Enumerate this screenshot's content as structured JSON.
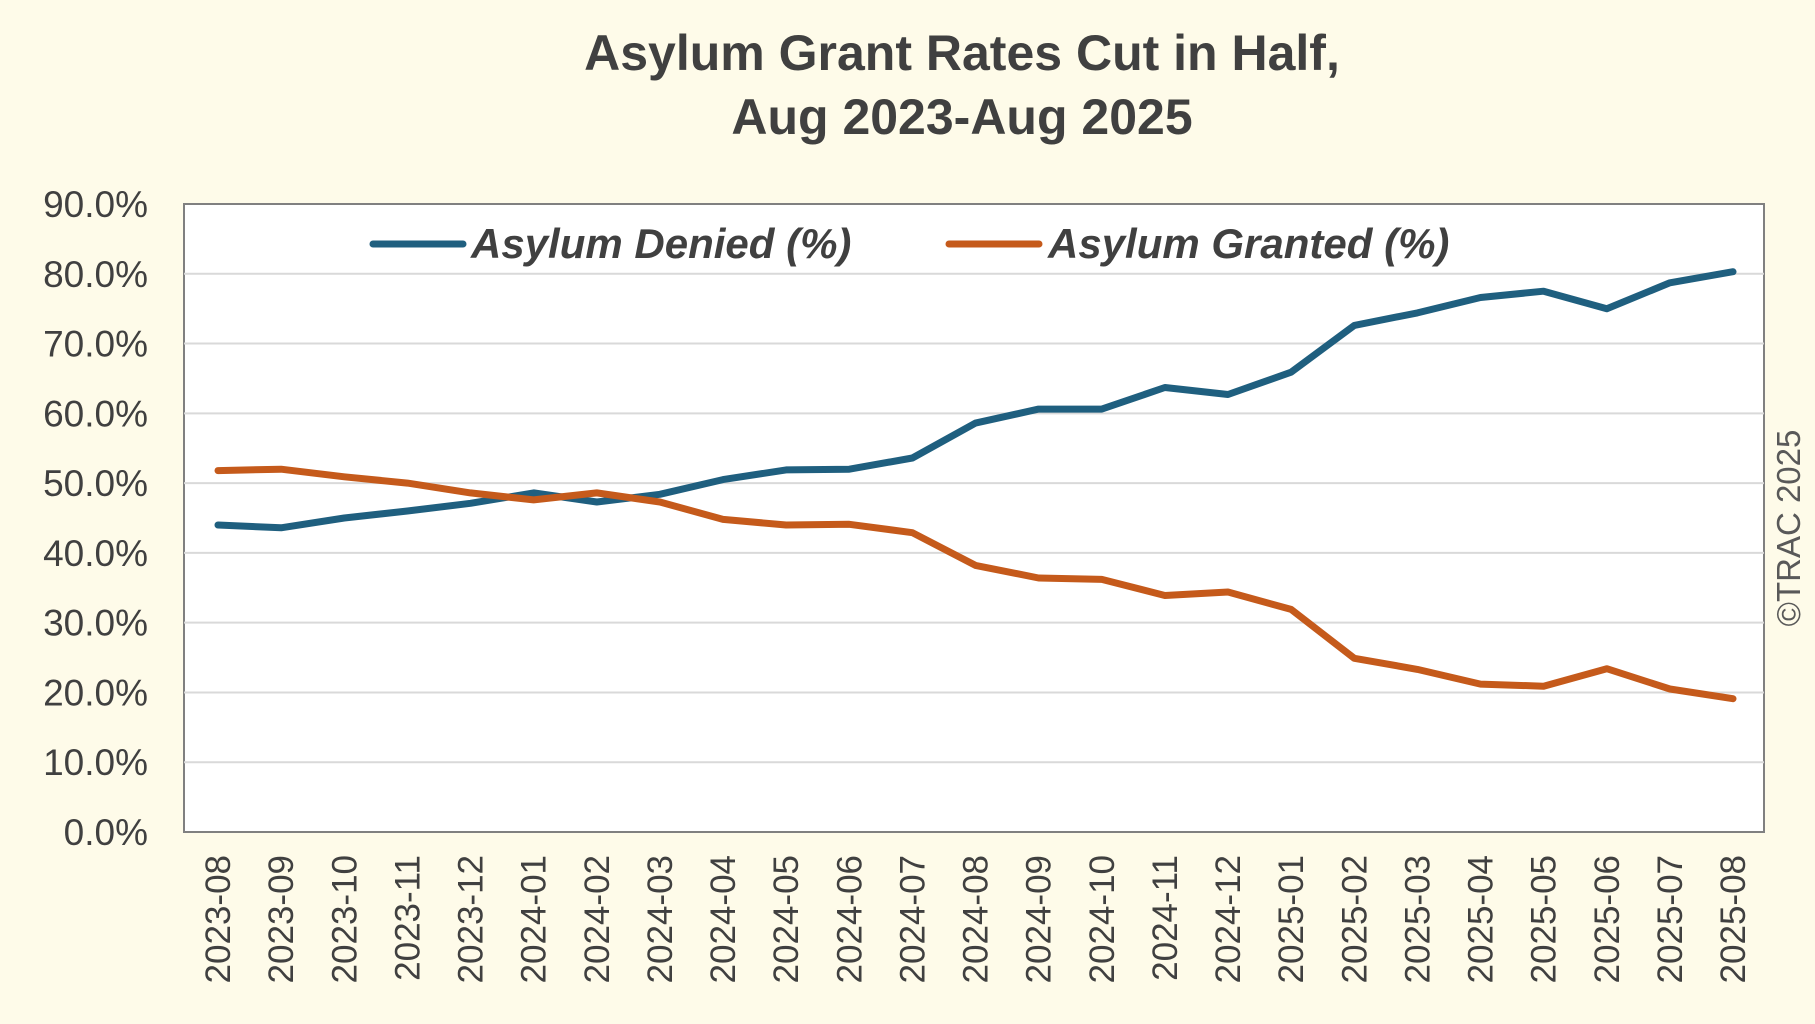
{
  "chart_data": {
    "type": "line",
    "title": [
      "Asylum Grant Rates Cut in Half,",
      "Aug 2023-Aug 2025"
    ],
    "xlabel": "",
    "ylabel": "",
    "ylim": [
      0,
      90
    ],
    "yticks": [
      "0.0%",
      "10.0%",
      "20.0%",
      "30.0%",
      "40.0%",
      "50.0%",
      "60.0%",
      "70.0%",
      "80.0%",
      "90.0%"
    ],
    "grid": true,
    "legend_position": "top",
    "categories": [
      "2023-08",
      "2023-09",
      "2023-10",
      "2023-11",
      "2023-12",
      "2024-01",
      "2024-02",
      "2024-03",
      "2024-04",
      "2024-05",
      "2024-06",
      "2024-07",
      "2024-08",
      "2024-09",
      "2024-10",
      "2024-11",
      "2024-12",
      "2025-01",
      "2025-02",
      "2025-03",
      "2025-04",
      "2025-05",
      "2025-06",
      "2025-07",
      "2025-08"
    ],
    "series": [
      {
        "name": "Asylum Denied (%)",
        "color": "#1f5f7f",
        "values": [
          44.0,
          43.6,
          45.0,
          46.0,
          47.1,
          48.6,
          47.3,
          48.4,
          50.5,
          51.9,
          52.0,
          53.6,
          58.6,
          60.6,
          60.6,
          63.7,
          62.7,
          65.9,
          72.6,
          74.4,
          76.6,
          77.5,
          75.0,
          78.7,
          80.3
        ]
      },
      {
        "name": "Asylum Granted (%)",
        "color": "#c55a1b",
        "values": [
          51.8,
          52.0,
          50.9,
          50.0,
          48.6,
          47.6,
          48.6,
          47.3,
          44.8,
          44.0,
          44.1,
          42.9,
          38.2,
          36.4,
          36.2,
          33.9,
          34.4,
          31.9,
          24.9,
          23.3,
          21.2,
          20.9,
          23.4,
          20.5,
          19.1
        ]
      }
    ]
  },
  "watermark": "©TRAC 2025"
}
